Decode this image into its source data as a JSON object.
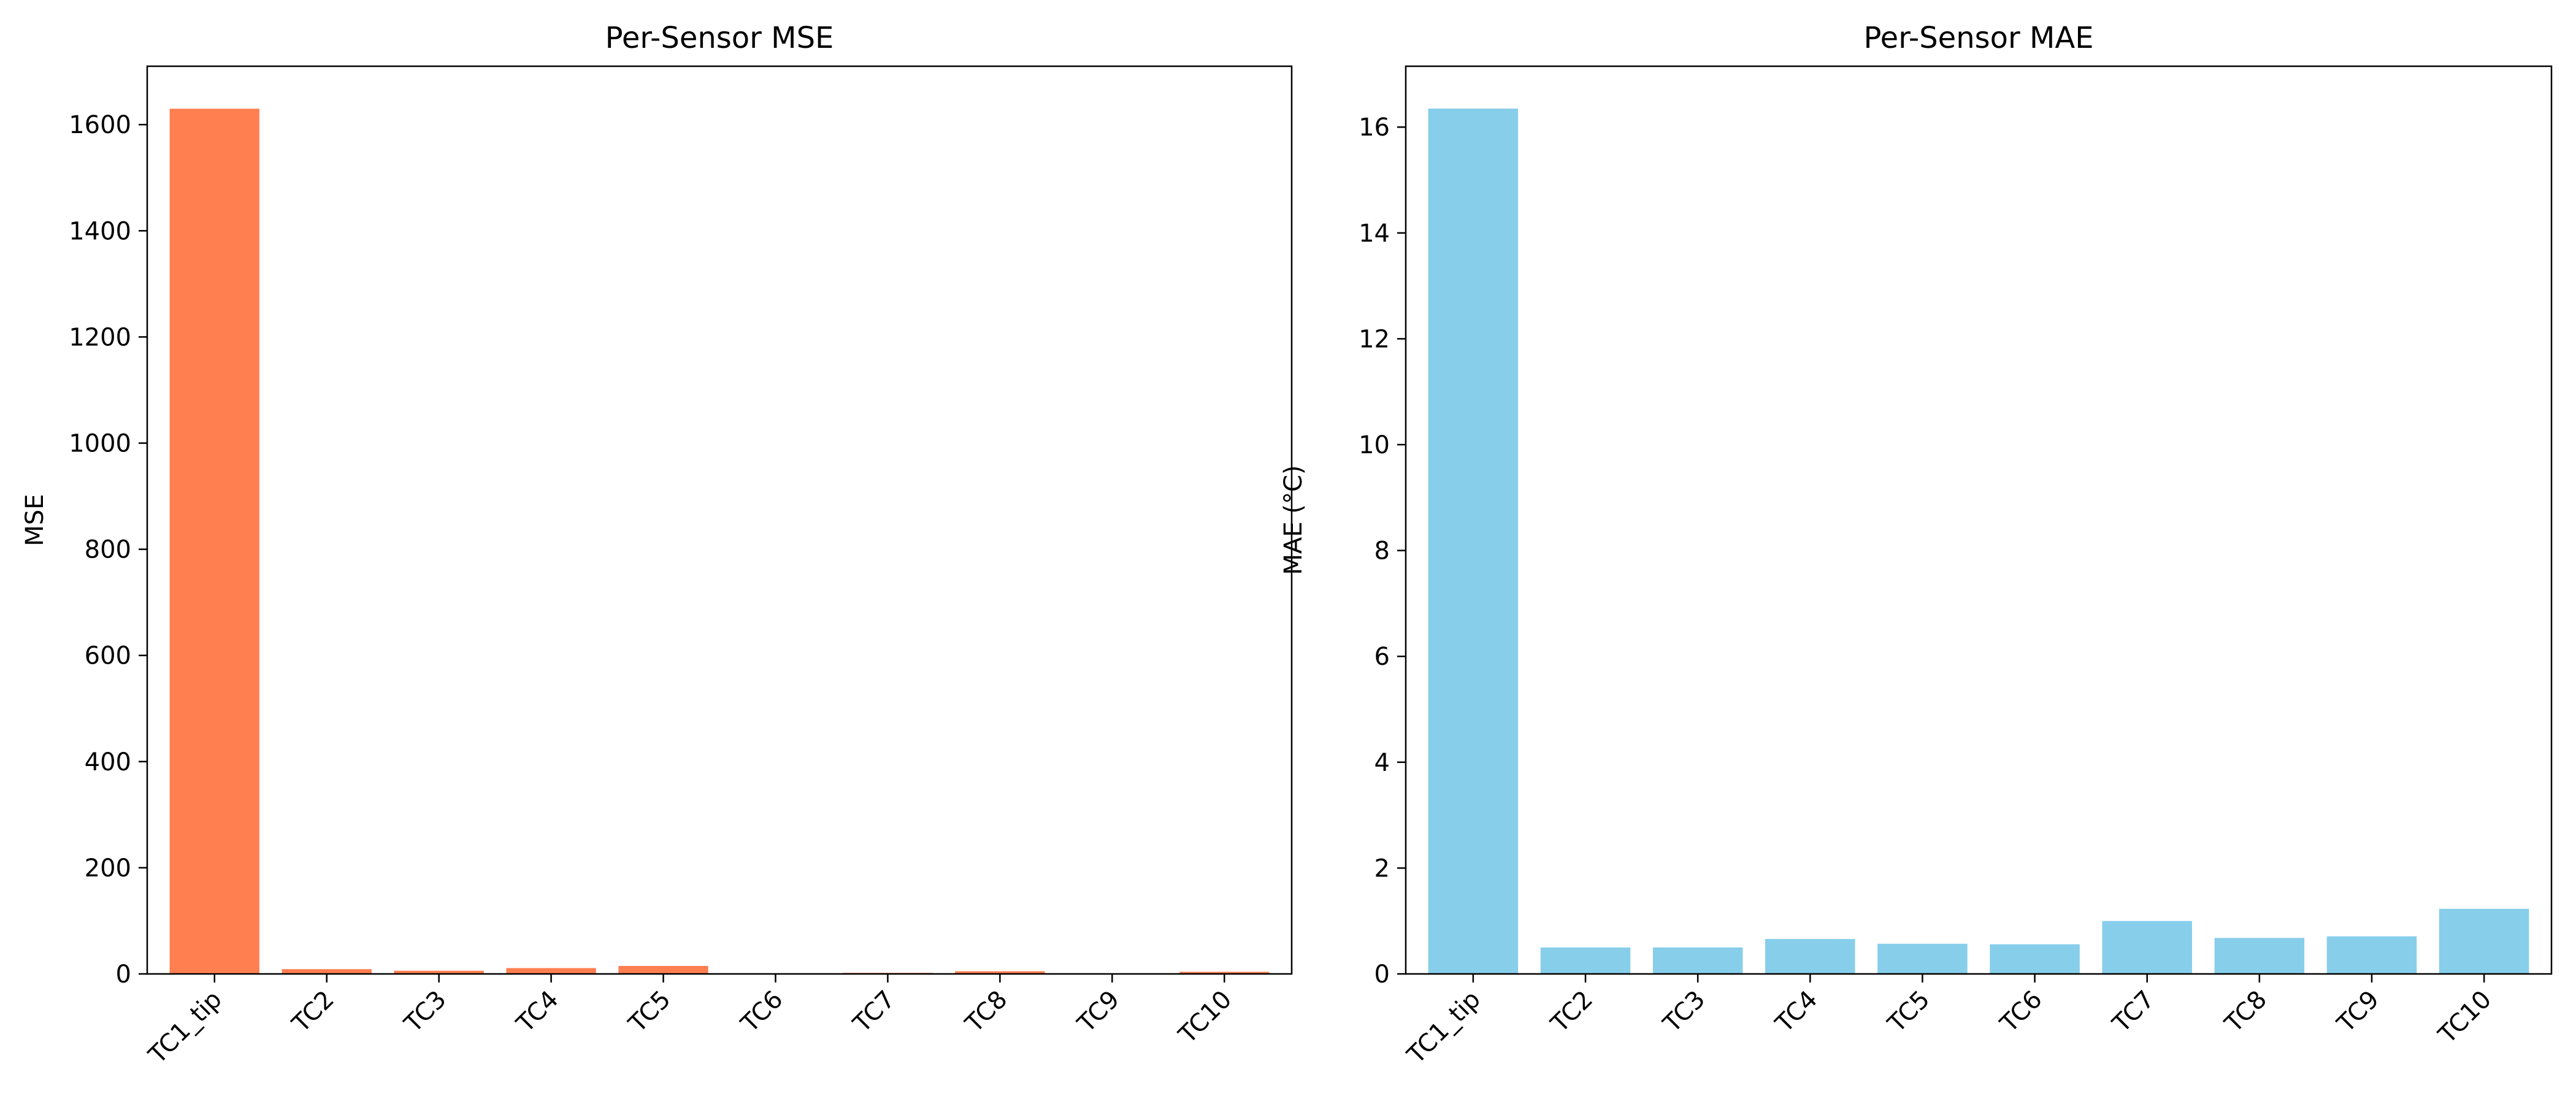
{
  "chart_data": [
    {
      "type": "bar",
      "title": "Per-Sensor MSE",
      "xlabel": "",
      "ylabel": "MSE",
      "categories": [
        "TC1_tip",
        "TC2",
        "TC3",
        "TC4",
        "TC5",
        "TC6",
        "TC7",
        "TC8",
        "TC9",
        "TC10"
      ],
      "values": [
        1630,
        9,
        6,
        11,
        15,
        1,
        2,
        5,
        1,
        4
      ],
      "ylim": [
        0,
        1710
      ],
      "yticks": [
        0,
        200,
        400,
        600,
        800,
        1000,
        1200,
        1400,
        1600
      ],
      "color": "#ff7f50",
      "grid": false
    },
    {
      "type": "bar",
      "title": "Per-Sensor MAE",
      "xlabel": "",
      "ylabel": "MAE (°C)",
      "categories": [
        "TC1_tip",
        "TC2",
        "TC3",
        "TC4",
        "TC5",
        "TC6",
        "TC7",
        "TC8",
        "TC9",
        "TC10"
      ],
      "values": [
        16.35,
        0.5,
        0.5,
        0.66,
        0.57,
        0.56,
        1.0,
        0.68,
        0.71,
        1.23
      ],
      "ylim": [
        0,
        17.15
      ],
      "yticks": [
        0,
        2,
        4,
        6,
        8,
        10,
        12,
        14,
        16
      ],
      "color": "#87ceeb",
      "grid": false
    }
  ]
}
